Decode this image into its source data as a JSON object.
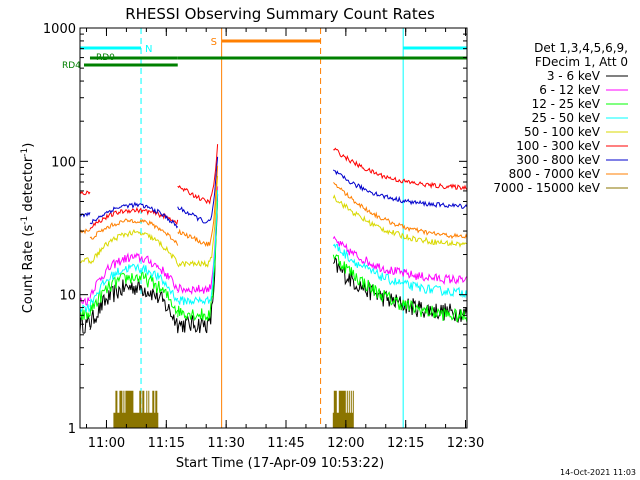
{
  "chart_data": {
    "type": "line",
    "title": "RHESSI Observing Summary Count Rates",
    "xlabel": "Start Time (17-Apr-09 10:53:22)",
    "ylabel_main": "Count Rate (s",
    "ylabel_sup1": "-1",
    "ylabel_mid": " detector",
    "ylabel_sup2": "-1",
    "ylabel_end": ")",
    "yscale": "log",
    "ylim": [
      1,
      1000
    ],
    "xlim_minutes_after_start": [
      0,
      97
    ],
    "x_ticks": [
      "11:00",
      "11:15",
      "11:30",
      "11:45",
      "12:00",
      "12:15",
      "12:30"
    ],
    "y_ticks": [
      "1",
      "10",
      "100",
      "1000"
    ],
    "timestamp": "14-Oct-2021 11:03",
    "legend": {
      "header1": "Det 1,3,4,5,6,9,",
      "header2": "FDecim 1, Att 0",
      "items": [
        {
          "label": "3 - 6 keV",
          "color": "#000000"
        },
        {
          "label": "6 - 12 keV",
          "color": "#ff00ff"
        },
        {
          "label": "12 - 25 keV",
          "color": "#00ff00"
        },
        {
          "label": "25 - 50 keV",
          "color": "#00ffff"
        },
        {
          "label": "50 - 100 keV",
          "color": "#d9d900"
        },
        {
          "label": "100 - 300 keV",
          "color": "#ff0000"
        },
        {
          "label": "300 - 800 keV",
          "color": "#0000cc"
        },
        {
          "label": "800 - 7000 keV",
          "color": "#ff7f00"
        },
        {
          "label": "7000 - 15000 keV",
          "color": "#8b7500"
        }
      ]
    },
    "flag_labels": {
      "night": "N",
      "saa": "S",
      "rd0": "RD0",
      "rd4": "RD4"
    },
    "flag_colors": {
      "night": "#00ffff",
      "saa": "#ff7f00",
      "rd": "#008000"
    },
    "segments": [
      {
        "name": "orbit-1-start",
        "t_start": 0,
        "t_end": 2.5,
        "values": {
          "3 - 6 keV": 6,
          "6 - 12 keV": 9,
          "12 - 25 keV": 7,
          "25 - 50 keV": 8,
          "50 - 100 keV": 18,
          "100 - 300 keV": 58,
          "300 - 800 keV": 40,
          "800 - 7000 keV": 30
        }
      },
      {
        "name": "orbit-1-main",
        "t_start": 2.5,
        "t_end": 24.5,
        "values_start": {
          "3 - 6 keV": 6,
          "6 - 12 keV": 10,
          "12 - 25 keV": 7.5,
          "25 - 50 keV": 8.5,
          "50 - 100 keV": 17,
          "100 - 300 keV": 32,
          "300 - 800 keV": 34,
          "800 - 7000 keV": 26
        },
        "values_peak": {
          "3 - 6 keV": 11.5,
          "6 - 12 keV": 19,
          "12 - 25 keV": 13.5,
          "25 - 50 keV": 16,
          "50 - 100 keV": 29,
          "100 - 300 keV": 43,
          "300 - 800 keV": 47,
          "800 - 7000 keV": 36
        },
        "values_end": {
          "3 - 6 keV": 6,
          "6 - 12 keV": 11,
          "12 - 25 keV": 7.5,
          "25 - 50 keV": 9,
          "50 - 100 keV": 17,
          "100 - 300 keV": 35,
          "300 - 800 keV": 32,
          "800 - 7000 keV": 24
        }
      },
      {
        "name": "orbit-1-flare",
        "t_start": 24.5,
        "t_end": 34.5,
        "values_start": {
          "3 - 6 keV": 6,
          "6 - 12 keV": 11,
          "12 - 25 keV": 7.5,
          "25 - 50 keV": 9,
          "50 - 100 keV": 17,
          "100 - 300 keV": 65,
          "300 - 800 keV": 45,
          "800 - 7000 keV": 30
        },
        "values_end": {
          "3 - 6 keV": 6,
          "6 - 12 keV": 11,
          "12 - 25 keV": 7,
          "25 - 50 keV": 9,
          "50 - 100 keV": 17,
          "100 - 300 keV": 50,
          "300 - 800 keV": 35,
          "800 - 7000 keV": 24
        },
        "values_spike": {
          "3 - 6 keV": 50,
          "6 - 12 keV": 60,
          "12 - 25 keV": 55,
          "25 - 50 keV": 60,
          "50 - 100 keV": 80,
          "100 - 300 keV": 130,
          "300 - 800 keV": 110,
          "800 - 7000 keV": 90
        }
      },
      {
        "name": "orbit-2",
        "t_start": 63.5,
        "t_end": 97,
        "values_start": {
          "3 - 6 keV": 17,
          "6 - 12 keV": 26,
          "12 - 25 keV": 20,
          "25 - 50 keV": 24,
          "50 - 100 keV": 55,
          "100 - 300 keV": 125,
          "300 - 800 keV": 85,
          "800 - 7000 keV": 70
        },
        "values_end": {
          "3 - 6 keV": 7,
          "6 - 12 keV": 12.5,
          "12 - 25 keV": 6.5,
          "25 - 50 keV": 10,
          "50 - 100 keV": 23,
          "100 - 300 keV": 62,
          "300 - 800 keV": 45,
          "800 - 7000 keV": 26
        },
        "decay_minutes": 9
      }
    ],
    "high_energy_bursts": [
      {
        "t_start": 8.5,
        "t_end": 19.5,
        "values": [
          1.9,
          1.3
        ]
      },
      {
        "t_start": 63.5,
        "t_end": 68.5,
        "values": [
          1.9,
          1.3
        ]
      }
    ],
    "night_intervals_minutes": [
      [
        0,
        15.3
      ],
      [
        81,
        97
      ]
    ],
    "night_dashed_minutes": [
      15.3,
      97
    ],
    "night_solid_minutes": [
      0,
      81
    ],
    "saa_interval_minutes": [
      35.5,
      60.3
    ],
    "saa_solid_minute": 35.5,
    "saa_dashed_minute": 60.3,
    "rd_intervals_minutes": [
      [
        2.5,
        24.5
      ],
      [
        24.5,
        97
      ]
    ],
    "rd4_interval_minutes": [
      0,
      24.5
    ]
  }
}
